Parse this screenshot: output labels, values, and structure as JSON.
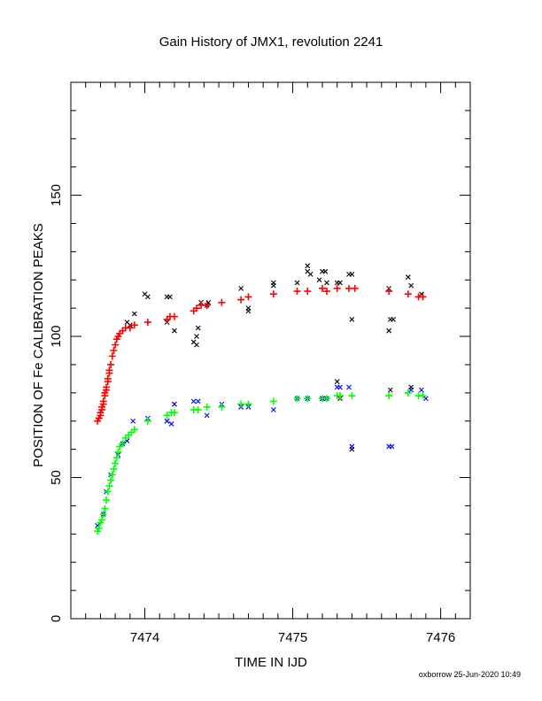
{
  "chart_data": {
    "type": "scatter",
    "title": "Gain History of JMX1, revolution 2241",
    "xlabel": "TIME IN IJD",
    "ylabel": "POSITION OF Fe CALIBRATION PEAKS",
    "xlim": [
      7473.5,
      7476.2
    ],
    "ylim": [
      0,
      190
    ],
    "x_ticks": [
      7474,
      7475,
      7476
    ],
    "y_ticks": [
      0,
      50,
      100,
      150
    ],
    "grid": false,
    "colors": {
      "black": "#000000",
      "red": "#ff0000",
      "blue": "#0000ff",
      "green": "#00ff00"
    },
    "series": [
      {
        "color": "#000000",
        "marker": "x",
        "points": [
          [
            7473.88,
            105
          ],
          [
            7473.9,
            104
          ],
          [
            7473.93,
            108
          ],
          [
            7474.0,
            115
          ],
          [
            7474.02,
            114
          ],
          [
            7474.15,
            114
          ],
          [
            7474.17,
            114
          ],
          [
            7474.15,
            105
          ],
          [
            7474.2,
            102
          ],
          [
            7474.33,
            98
          ],
          [
            7474.35,
            100
          ],
          [
            7474.36,
            103
          ],
          [
            7474.35,
            97
          ],
          [
            7474.38,
            112
          ],
          [
            7474.42,
            111
          ],
          [
            7474.43,
            112
          ],
          [
            7474.65,
            117
          ],
          [
            7474.7,
            110
          ],
          [
            7474.7,
            109
          ],
          [
            7474.87,
            119
          ],
          [
            7474.87,
            118
          ],
          [
            7475.03,
            119
          ],
          [
            7475.1,
            125
          ],
          [
            7475.1,
            123
          ],
          [
            7475.12,
            122
          ],
          [
            7475.18,
            120
          ],
          [
            7475.2,
            123
          ],
          [
            7475.23,
            119
          ],
          [
            7475.22,
            123
          ],
          [
            7475.3,
            119
          ],
          [
            7475.32,
            119
          ],
          [
            7475.38,
            122
          ],
          [
            7475.4,
            122
          ],
          [
            7475.4,
            106
          ],
          [
            7475.65,
            117
          ],
          [
            7475.65,
            102
          ],
          [
            7475.66,
            106
          ],
          [
            7475.68,
            106
          ],
          [
            7475.78,
            121
          ],
          [
            7475.8,
            118
          ],
          [
            7475.87,
            115
          ],
          [
            7474.15,
            70
          ],
          [
            7474.2,
            76
          ],
          [
            7474.65,
            75
          ],
          [
            7474.7,
            75
          ],
          [
            7475.2,
            78
          ],
          [
            7475.3,
            84
          ],
          [
            7475.32,
            78
          ],
          [
            7475.4,
            60
          ],
          [
            7475.66,
            81
          ],
          [
            7475.8,
            82
          ]
        ]
      },
      {
        "color": "#ff0000",
        "marker": "+",
        "points": [
          [
            7473.68,
            70
          ],
          [
            7473.69,
            71
          ],
          [
            7473.7,
            72
          ],
          [
            7473.7,
            73
          ],
          [
            7473.71,
            74
          ],
          [
            7473.71,
            75
          ],
          [
            7473.72,
            76
          ],
          [
            7473.72,
            77
          ],
          [
            7473.73,
            79
          ],
          [
            7473.73,
            80
          ],
          [
            7473.74,
            81
          ],
          [
            7473.74,
            82
          ],
          [
            7473.75,
            84
          ],
          [
            7473.75,
            85
          ],
          [
            7473.76,
            87
          ],
          [
            7473.76,
            88
          ],
          [
            7473.77,
            90
          ],
          [
            7473.78,
            93
          ],
          [
            7473.79,
            95
          ],
          [
            7473.8,
            97
          ],
          [
            7473.81,
            99
          ],
          [
            7473.82,
            100
          ],
          [
            7473.83,
            101
          ],
          [
            7473.85,
            102
          ],
          [
            7473.87,
            103
          ],
          [
            7473.9,
            103
          ],
          [
            7473.93,
            104
          ],
          [
            7474.02,
            105
          ],
          [
            7474.15,
            106
          ],
          [
            7474.17,
            107
          ],
          [
            7474.2,
            107
          ],
          [
            7474.33,
            109
          ],
          [
            7474.35,
            110
          ],
          [
            7474.38,
            111
          ],
          [
            7474.42,
            111
          ],
          [
            7474.52,
            112
          ],
          [
            7474.65,
            113
          ],
          [
            7474.7,
            114
          ],
          [
            7474.87,
            115
          ],
          [
            7475.03,
            116
          ],
          [
            7475.1,
            116
          ],
          [
            7475.2,
            117
          ],
          [
            7475.23,
            116
          ],
          [
            7475.3,
            117
          ],
          [
            7475.38,
            117
          ],
          [
            7475.42,
            117
          ],
          [
            7475.65,
            116
          ],
          [
            7475.78,
            115
          ],
          [
            7475.85,
            114
          ],
          [
            7475.88,
            114
          ]
        ]
      },
      {
        "color": "#0000ff",
        "marker": "x",
        "points": [
          [
            7473.68,
            33
          ],
          [
            7473.72,
            37
          ],
          [
            7473.74,
            45
          ],
          [
            7473.77,
            51
          ],
          [
            7473.82,
            58
          ],
          [
            7473.85,
            62
          ],
          [
            7473.88,
            63
          ],
          [
            7473.92,
            70
          ],
          [
            7474.02,
            71
          ],
          [
            7474.15,
            70
          ],
          [
            7474.18,
            69
          ],
          [
            7474.2,
            76
          ],
          [
            7474.33,
            77
          ],
          [
            7474.36,
            77
          ],
          [
            7474.42,
            72
          ],
          [
            7474.52,
            76
          ],
          [
            7474.65,
            75
          ],
          [
            7474.7,
            75
          ],
          [
            7474.87,
            74
          ],
          [
            7475.03,
            78
          ],
          [
            7475.1,
            78
          ],
          [
            7475.2,
            78
          ],
          [
            7475.23,
            78
          ],
          [
            7475.3,
            82
          ],
          [
            7475.32,
            82
          ],
          [
            7475.38,
            82
          ],
          [
            7475.4,
            61
          ],
          [
            7475.65,
            61
          ],
          [
            7475.67,
            61
          ],
          [
            7475.8,
            81
          ],
          [
            7475.87,
            81
          ],
          [
            7475.9,
            78
          ]
        ]
      },
      {
        "color": "#00ff00",
        "marker": "+",
        "points": [
          [
            7473.68,
            31
          ],
          [
            7473.69,
            32
          ],
          [
            7473.7,
            34
          ],
          [
            7473.71,
            35
          ],
          [
            7473.72,
            37
          ],
          [
            7473.73,
            39
          ],
          [
            7473.74,
            42
          ],
          [
            7473.75,
            45
          ],
          [
            7473.76,
            47
          ],
          [
            7473.77,
            49
          ],
          [
            7473.78,
            51
          ],
          [
            7473.79,
            53
          ],
          [
            7473.8,
            55
          ],
          [
            7473.81,
            57
          ],
          [
            7473.82,
            59
          ],
          [
            7473.83,
            61
          ],
          [
            7473.85,
            62
          ],
          [
            7473.87,
            64
          ],
          [
            7473.89,
            65
          ],
          [
            7473.91,
            66
          ],
          [
            7473.93,
            67
          ],
          [
            7474.02,
            70
          ],
          [
            7474.15,
            72
          ],
          [
            7474.18,
            73
          ],
          [
            7474.2,
            73
          ],
          [
            7474.33,
            74
          ],
          [
            7474.36,
            74
          ],
          [
            7474.42,
            75
          ],
          [
            7474.52,
            75
          ],
          [
            7474.65,
            76
          ],
          [
            7474.7,
            76
          ],
          [
            7474.87,
            77
          ],
          [
            7475.03,
            78
          ],
          [
            7475.1,
            78
          ],
          [
            7475.2,
            78
          ],
          [
            7475.23,
            78
          ],
          [
            7475.3,
            79
          ],
          [
            7475.32,
            79
          ],
          [
            7475.4,
            79
          ],
          [
            7475.65,
            79
          ],
          [
            7475.78,
            80
          ],
          [
            7475.85,
            79
          ],
          [
            7475.88,
            79
          ]
        ]
      }
    ]
  },
  "footer": "oxborrow 25-Jun-2020 10:49"
}
